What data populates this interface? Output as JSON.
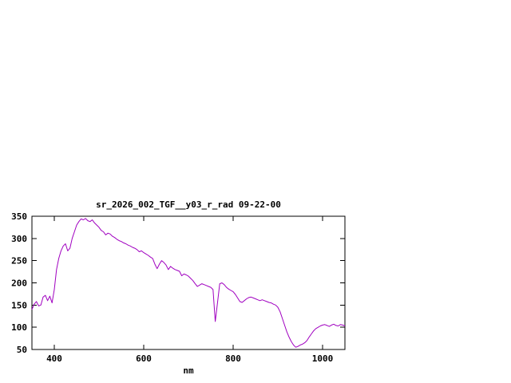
{
  "page": {
    "background": "#ffffff",
    "text_color": "#000000",
    "border_color": "#000000"
  },
  "chart_data": {
    "type": "line",
    "title": "sr_2026_002_TGF__y03_r_rad 09-22-00",
    "xlabel": "nm",
    "ylabel": "",
    "xlim": [
      350,
      1050
    ],
    "ylim": [
      50,
      350
    ],
    "xticks": [
      400,
      600,
      800,
      1000
    ],
    "yticks": [
      50,
      100,
      150,
      200,
      250,
      300,
      350
    ],
    "grid": false,
    "legend_position": "none",
    "line_color": "#a000c0",
    "x": [
      350,
      355,
      360,
      365,
      370,
      375,
      380,
      385,
      390,
      395,
      400,
      405,
      410,
      415,
      420,
      425,
      430,
      435,
      440,
      445,
      450,
      455,
      460,
      465,
      470,
      475,
      480,
      485,
      490,
      495,
      500,
      505,
      510,
      515,
      520,
      525,
      530,
      535,
      540,
      545,
      550,
      555,
      560,
      565,
      570,
      575,
      580,
      585,
      590,
      595,
      600,
      605,
      610,
      615,
      620,
      625,
      630,
      635,
      640,
      645,
      650,
      655,
      660,
      665,
      670,
      675,
      680,
      685,
      690,
      695,
      700,
      705,
      710,
      715,
      720,
      725,
      730,
      735,
      740,
      745,
      750,
      755,
      760,
      765,
      770,
      775,
      780,
      785,
      790,
      795,
      800,
      805,
      810,
      815,
      820,
      825,
      830,
      835,
      840,
      845,
      850,
      855,
      860,
      865,
      870,
      875,
      880,
      885,
      890,
      895,
      900,
      905,
      910,
      915,
      920,
      925,
      930,
      935,
      940,
      945,
      950,
      955,
      960,
      965,
      970,
      975,
      980,
      985,
      990,
      995,
      1000,
      1005,
      1010,
      1015,
      1020,
      1025,
      1030,
      1035,
      1040,
      1045,
      1050
    ],
    "values": [
      140,
      152,
      158,
      148,
      150,
      168,
      172,
      160,
      170,
      155,
      185,
      230,
      255,
      272,
      283,
      288,
      272,
      278,
      300,
      315,
      330,
      338,
      344,
      342,
      345,
      340,
      338,
      342,
      335,
      330,
      325,
      318,
      315,
      308,
      312,
      310,
      305,
      302,
      298,
      295,
      293,
      290,
      288,
      285,
      283,
      280,
      278,
      275,
      270,
      272,
      268,
      265,
      262,
      258,
      255,
      242,
      232,
      242,
      250,
      246,
      240,
      230,
      237,
      233,
      230,
      228,
      226,
      216,
      220,
      218,
      215,
      210,
      205,
      198,
      192,
      195,
      198,
      196,
      194,
      192,
      190,
      185,
      113,
      155,
      198,
      200,
      196,
      190,
      186,
      183,
      180,
      174,
      166,
      158,
      156,
      160,
      164,
      167,
      168,
      166,
      164,
      162,
      160,
      162,
      160,
      158,
      156,
      155,
      152,
      150,
      145,
      135,
      120,
      105,
      90,
      78,
      68,
      60,
      55,
      57,
      60,
      62,
      65,
      70,
      78,
      85,
      92,
      97,
      100,
      103,
      105,
      106,
      104,
      102,
      105,
      107,
      104,
      103,
      106,
      105,
      103
    ]
  }
}
